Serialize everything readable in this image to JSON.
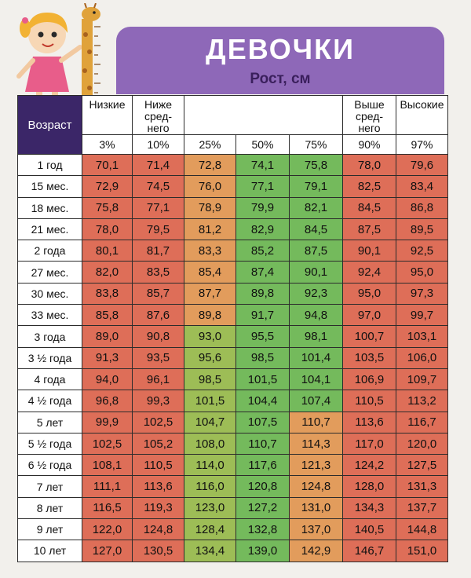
{
  "title": "ДЕВОЧКИ",
  "subtitle": "Рост, см",
  "age_header": "Возраст",
  "groups": [
    {
      "label": "Низкие",
      "pct": "3%"
    },
    {
      "label": "Ниже сред-него",
      "pct": "10%"
    },
    {
      "label": "",
      "pct": "25%"
    },
    {
      "label": "",
      "pct": "50%"
    },
    {
      "label": "",
      "pct": "75%"
    },
    {
      "label": "Выше сред-него",
      "pct": "90%"
    },
    {
      "label": "Высокие",
      "pct": "97%"
    }
  ],
  "header_lines": {
    "low": "Низкие",
    "below1": "Ниже",
    "below2": "сред-",
    "below3": "него",
    "above1": "Выше",
    "above2": "сред-",
    "above3": "него",
    "high": "Высокие"
  },
  "percentiles": [
    "3%",
    "10%",
    "25%",
    "50%",
    "75%",
    "90%",
    "97%"
  ],
  "rows": [
    {
      "age": "1 год",
      "values": [
        "70,1",
        "71,4",
        "72,8",
        "74,1",
        "75,8",
        "78,0",
        "79,6"
      ]
    },
    {
      "age": "15 мес.",
      "values": [
        "72,9",
        "74,5",
        "76,0",
        "77,1",
        "79,1",
        "82,5",
        "83,4"
      ]
    },
    {
      "age": "18 мес.",
      "values": [
        "75,8",
        "77,1",
        "78,9",
        "79,9",
        "82,1",
        "84,5",
        "86,8"
      ]
    },
    {
      "age": "21 мес.",
      "values": [
        "78,0",
        "79,5",
        "81,2",
        "82,9",
        "84,5",
        "87,5",
        "89,5"
      ]
    },
    {
      "age": "2 года",
      "values": [
        "80,1",
        "81,7",
        "83,3",
        "85,2",
        "87,5",
        "90,1",
        "92,5"
      ]
    },
    {
      "age": "27 мес.",
      "values": [
        "82,0",
        "83,5",
        "85,4",
        "87,4",
        "90,1",
        "92,4",
        "95,0"
      ]
    },
    {
      "age": "30 мес.",
      "values": [
        "83,8",
        "85,7",
        "87,7",
        "89,8",
        "92,3",
        "95,0",
        "97,3"
      ]
    },
    {
      "age": "33 мес.",
      "values": [
        "85,8",
        "87,6",
        "89,8",
        "91,7",
        "94,8",
        "97,0",
        "99,7"
      ]
    },
    {
      "age": "3 года",
      "values": [
        "89,0",
        "90,8",
        "93,0",
        "95,5",
        "98,1",
        "100,7",
        "103,1"
      ]
    },
    {
      "age": "3 ½ года",
      "values": [
        "91,3",
        "93,5",
        "95,6",
        "98,5",
        "101,4",
        "103,5",
        "106,0"
      ]
    },
    {
      "age": "4 года",
      "values": [
        "94,0",
        "96,1",
        "98,5",
        "101,5",
        "104,1",
        "106,9",
        "109,7"
      ]
    },
    {
      "age": "4 ½ года",
      "values": [
        "96,8",
        "99,3",
        "101,5",
        "104,4",
        "107,4",
        "110,5",
        "113,2"
      ]
    },
    {
      "age": "5 лет",
      "values": [
        "99,9",
        "102,5",
        "104,7",
        "107,5",
        "110,7",
        "113,6",
        "116,7"
      ]
    },
    {
      "age": "5 ½ года",
      "values": [
        "102,5",
        "105,2",
        "108,0",
        "110,7",
        "114,3",
        "117,0",
        "120,0"
      ]
    },
    {
      "age": "6 ½ года",
      "values": [
        "108,1",
        "110,5",
        "114,0",
        "117,6",
        "121,3",
        "124,2",
        "127,5"
      ]
    },
    {
      "age": "7 лет",
      "values": [
        "111,1",
        "113,6",
        "116,0",
        "120,8",
        "124,8",
        "128,0",
        "131,3"
      ]
    },
    {
      "age": "8 лет",
      "values": [
        "116,5",
        "119,3",
        "123,0",
        "127,2",
        "131,0",
        "134,3",
        "137,7"
      ]
    },
    {
      "age": "9 лет",
      "values": [
        "122,0",
        "124,8",
        "128,4",
        "132,8",
        "137,0",
        "140,5",
        "144,8"
      ]
    },
    {
      "age": "10 лет",
      "values": [
        "127,0",
        "130,5",
        "134,4",
        "139,0",
        "142,9",
        "146,7",
        "151,0"
      ]
    }
  ],
  "colors": {
    "banner": "#8e68b8",
    "age_header_bg": "#3b2668",
    "low_zone": "#de6e58",
    "mid_zone": "#74ba5c",
    "transition_zone": "#e29c5c"
  },
  "illustrations": [
    "girl-illustration",
    "giraffe-height-ruler-illustration"
  ]
}
